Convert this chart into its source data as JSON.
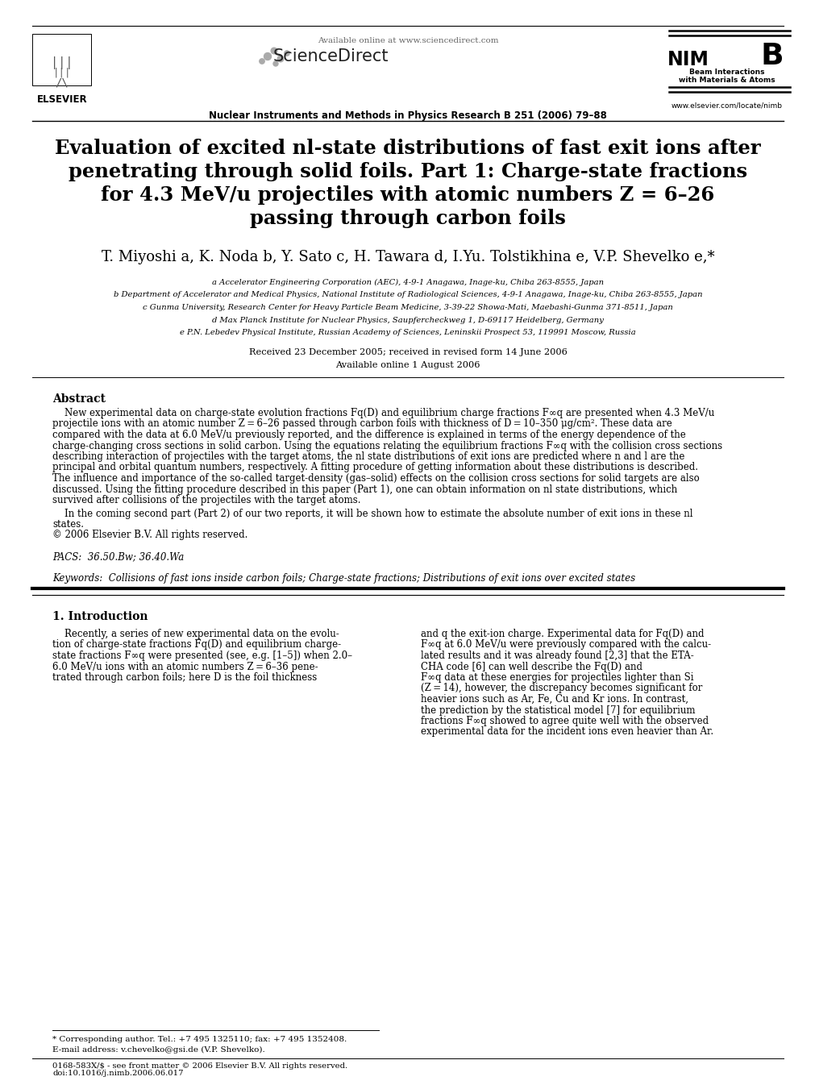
{
  "bg_color": "#ffffff",
  "header": {
    "available_online": "Available online at www.sciencedirect.com",
    "journal_name": "Nuclear Instruments and Methods in Physics Research B 251 (2006) 79–88",
    "journal_url": "www.elsevier.com/locate/nimb",
    "nimb_line1": "NIM",
    "nimb_line2": "B",
    "nimb_sub1": "Beam Interactions",
    "nimb_sub2": "with Materials & Atoms"
  },
  "title_line1": "Evaluation of excited nl-state distributions of fast exit ions after",
  "title_line2": "penetrating through solid foils. Part 1: Charge-state fractions",
  "title_line3": "for 4.3 MeV/u projectiles with atomic numbers Z = 6–26",
  "title_line4": "passing through carbon foils",
  "authors": "T. Miyoshi a, K. Noda b, Y. Sato c, H. Tawara d, I.Yu. Tolstikhina e, V.P. Shevelko e,*",
  "affiliations": [
    "a Accelerator Engineering Corporation (AEC), 4-9-1 Anagawa, Inage-ku, Chiba 263-8555, Japan",
    "b Department of Accelerator and Medical Physics, National Institute of Radiological Sciences, 4-9-1 Anagawa, Inage-ku, Chiba 263-8555, Japan",
    "c Gunma University, Research Center for Heavy Particle Beam Medicine, 3-39-22 Showa-Mati, Maebashi-Gunma 371-8511, Japan",
    "d Max Planck Institute for Nuclear Physics, Saupfercheckweg 1, D-69117 Heidelberg, Germany",
    "e P.N. Lebedev Physical Institute, Russian Academy of Sciences, Leninskii Prospect 53, 119991 Moscow, Russia"
  ],
  "received": "Received 23 December 2005; received in revised form 14 June 2006",
  "available": "Available online 1 August 2006",
  "abstract_title": "Abstract",
  "abstract_lines": [
    "    New experimental data on charge-state evolution fractions Fq(D) and equilibrium charge fractions F∞q are presented when 4.3 MeV/u",
    "projectile ions with an atomic number Z = 6–26 passed through carbon foils with thickness of D = 10–350 μg/cm². These data are",
    "compared with the data at 6.0 MeV/u previously reported, and the difference is explained in terms of the energy dependence of the",
    "charge-changing cross sections in solid carbon. Using the equations relating the equilibrium fractions F∞q with the collision cross sections",
    "describing interaction of projectiles with the target atoms, the nl state distributions of exit ions are predicted where n and l are the",
    "principal and orbital quantum numbers, respectively. A fitting procedure of getting information about these distributions is described.",
    "The influence and importance of the so-called target-density (gas–solid) effects on the collision cross sections for solid targets are also",
    "discussed. Using the fitting procedure described in this paper (Part 1), one can obtain information on nl state distributions, which",
    "survived after collisions of the projectiles with the target atoms."
  ],
  "abstract_para2_line1": "    In the coming second part (Part 2) of our two reports, it will be shown how to estimate the absolute number of exit ions in these nl",
  "abstract_para2_line2": "states.",
  "copyright": "© 2006 Elsevier B.V. All rights reserved.",
  "pacs": "PACS:  36.50.Bw; 36.40.Wa",
  "keywords": "Keywords:  Collisions of fast ions inside carbon foils; Charge-state fractions; Distributions of exit ions over excited states",
  "section1_title": "1. Introduction",
  "col1_lines": [
    "    Recently, a series of new experimental data on the evolu-",
    "tion of charge-state fractions Fq(D) and equilibrium charge-",
    "state fractions F∞q were presented (see, e.g. [1–5]) when 2.0–",
    "6.0 MeV/u ions with an atomic numbers Z = 6–36 pene-",
    "trated through carbon foils; here D is the foil thickness"
  ],
  "col2_lines": [
    "and q the exit-ion charge. Experimental data for Fq(D) and",
    "F∞q at 6.0 MeV/u were previously compared with the calcu-",
    "lated results and it was already found [2,3] that the ETA-",
    "CHA code [6] can well describe the Fq(D) and",
    "F∞q data at these energies for projectiles lighter than Si",
    "(Z = 14), however, the discrepancy becomes significant for",
    "heavier ions such as Ar, Fe, Cu and Kr ions. In contrast,",
    "the prediction by the statistical model [7] for equilibrium",
    "fractions F∞q showed to agree quite well with the observed",
    "experimental data for the incident ions even heavier than Ar."
  ],
  "footnote_star": "* Corresponding author. Tel.: +7 495 1325110; fax: +7 495 1352408.",
  "footnote_email": "E-mail address: v.chevelko@gsi.de (V.P. Shevelko).",
  "footer_issn": "0168-583X/$ - see front matter © 2006 Elsevier B.V. All rights reserved.",
  "footer_doi": "doi:10.1016/j.nimb.2006.06.017"
}
